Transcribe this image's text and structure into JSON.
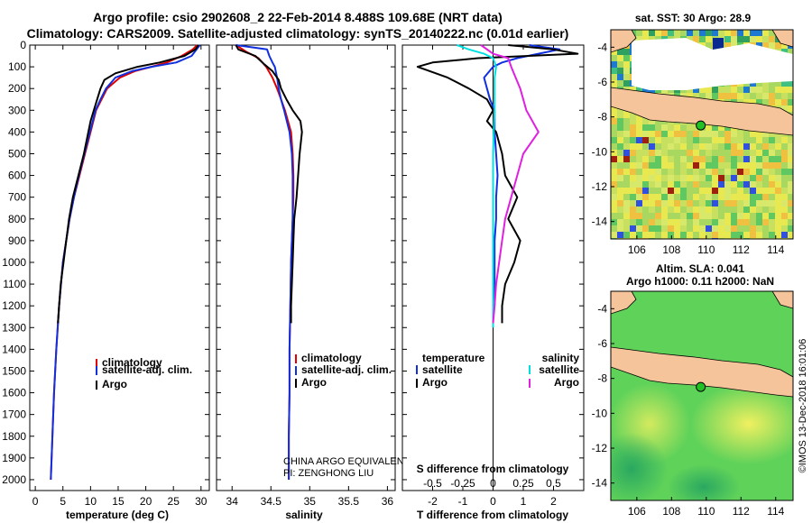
{
  "figure": {
    "title_line1": "Argo profile: csio 2902608_2 22-Feb-2014 8.488S 109.68E (NRT data)",
    "title_line2": "Climatology: CARS2009. Satellite-adjusted climatology: synTS_20140222.nc (0.01d earlier)",
    "credit": "©IMOS 13-Dec-2018 16:01:06",
    "pi_line1": "CHINA ARGO EQUIVALENT",
    "pi_line2": "PI: ZENGHONG LIU"
  },
  "colors": {
    "climatology": "#e00000",
    "satellite": "#1030e0",
    "argo": "#000000",
    "salinity_sat": "#00e0e0",
    "salinity_argo": "#e020e0",
    "land": "#f5c49a",
    "marker": "#22c022"
  },
  "chart_data": [
    {
      "type": "line",
      "id": "temperature-profile",
      "xlabel": "temperature (deg C)",
      "ylabel": "",
      "xlim": [
        -1,
        31.5
      ],
      "ylim": [
        2050,
        0
      ],
      "xticks": [
        "0",
        "5",
        "10",
        "15",
        "20",
        "25",
        "30"
      ],
      "yticks": [
        "0",
        "100",
        "200",
        "300",
        "400",
        "500",
        "600",
        "700",
        "800",
        "900",
        "1000",
        "1100",
        "1200",
        "1300",
        "1400",
        "1500",
        "1600",
        "1700",
        "1800",
        "1900",
        "2000"
      ],
      "legend": [
        "climatology",
        "satellite-adj. clim.",
        "Argo"
      ],
      "series": [
        {
          "name": "climatology",
          "depth": [
            0,
            20,
            50,
            80,
            100,
            120,
            150,
            200,
            250,
            300,
            400,
            500,
            600,
            700,
            800,
            900,
            1000,
            1200,
            1400,
            1600,
            1800,
            2000
          ],
          "values": [
            29.3,
            28.5,
            26.5,
            23.8,
            21,
            18,
            15.3,
            13,
            12,
            11,
            10,
            9,
            8,
            7,
            6.2,
            5.6,
            5,
            4.3,
            3.8,
            3.4,
            3.1,
            2.8
          ]
        },
        {
          "name": "satellite-adj. clim.",
          "depth": [
            0,
            20,
            50,
            80,
            100,
            120,
            150,
            200,
            250,
            300,
            400,
            500,
            600,
            700,
            800,
            900,
            1000,
            1200,
            1400,
            1600,
            1800,
            2000
          ],
          "values": [
            29.8,
            29.2,
            28.3,
            25.5,
            21,
            17.5,
            14.5,
            12.8,
            11.8,
            10.9,
            9.9,
            8.9,
            7.9,
            7,
            6.2,
            5.6,
            5,
            4.3,
            3.8,
            3.4,
            3.1,
            2.8
          ]
        },
        {
          "name": "Argo",
          "depth": [
            0,
            20,
            50,
            80,
            100,
            130,
            160,
            200,
            250,
            300,
            350,
            400,
            500,
            600,
            700,
            800,
            900,
            1000,
            1100,
            1200,
            1280
          ],
          "values": [
            29.5,
            29,
            27,
            22.5,
            18.5,
            14.5,
            12.5,
            11.8,
            11.2,
            10.6,
            10,
            9.6,
            8.8,
            7.8,
            6.8,
            6.1,
            5.6,
            5.1,
            4.6,
            4.3,
            4.1
          ]
        }
      ]
    },
    {
      "type": "line",
      "id": "salinity-profile",
      "xlabel": "salinity",
      "xlim": [
        33.8,
        36.1
      ],
      "ylim": [
        2050,
        0
      ],
      "xticks": [
        "34",
        "34.5",
        "35",
        "35.5",
        "36"
      ],
      "legend": [
        "climatology",
        "satellite-adj. clim.",
        "Argo"
      ],
      "series": [
        {
          "name": "climatology",
          "depth": [
            0,
            30,
            60,
            100,
            150,
            200,
            250,
            300,
            400,
            500,
            600,
            700,
            800,
            900,
            1000,
            1200,
            1400,
            1600,
            1800,
            2000
          ],
          "values": [
            34.05,
            34.18,
            34.34,
            34.44,
            34.52,
            34.58,
            34.63,
            34.68,
            34.76,
            34.78,
            34.79,
            34.79,
            34.78,
            34.77,
            34.76,
            34.75,
            34.74,
            34.74,
            34.73,
            34.73
          ]
        },
        {
          "name": "satellite-adj. clim.",
          "depth": [
            0,
            20,
            50,
            80,
            100,
            150,
            200,
            250,
            300,
            400,
            500,
            600,
            700,
            800,
            900,
            1000,
            1200,
            1400,
            1600,
            1800,
            2000
          ],
          "values": [
            34.05,
            34.45,
            34.48,
            34.52,
            34.55,
            34.58,
            34.6,
            34.63,
            34.67,
            34.74,
            34.77,
            34.78,
            34.78,
            34.78,
            34.77,
            34.76,
            34.75,
            34.74,
            34.74,
            34.73,
            34.73
          ]
        },
        {
          "name": "Argo",
          "depth": [
            0,
            20,
            50,
            90,
            120,
            160,
            200,
            250,
            300,
            350,
            400,
            500,
            600,
            700,
            800,
            900,
            1000,
            1100,
            1200,
            1280
          ],
          "values": [
            34.05,
            34.08,
            34.3,
            34.42,
            34.52,
            34.6,
            34.63,
            34.7,
            34.78,
            34.88,
            34.9,
            34.87,
            34.85,
            34.83,
            34.8,
            34.79,
            34.78,
            34.77,
            34.76,
            34.76
          ]
        }
      ]
    },
    {
      "type": "line",
      "id": "difference-profile",
      "xlabel": "T difference from climatology",
      "x2label": "S difference from climatology",
      "xlim": [
        -3,
        3
      ],
      "ylim": [
        2050,
        0
      ],
      "xticks": [
        "-2",
        "-1",
        "0",
        "1",
        "2"
      ],
      "x2ticks": [
        "-0.5",
        "-0.25",
        "0",
        "0.25",
        "0.5"
      ],
      "legend_left_title": "temperature",
      "legend_right_title": "salinity",
      "legend_left": [
        "satellite",
        "Argo"
      ],
      "legend_right": [
        "satellite",
        "Argo"
      ],
      "series": [
        {
          "name": "temperature satellite",
          "depth": [
            0,
            20,
            40,
            60,
            80,
            100,
            150,
            200,
            250,
            300,
            400,
            500,
            600,
            700,
            800,
            900,
            1000,
            1200
          ],
          "values": [
            1.2,
            2.2,
            1.5,
            0.8,
            0.3,
            0,
            -0.3,
            -0.2,
            -0.1,
            0.05,
            0.05,
            0.1,
            0.15,
            0.1,
            0.1,
            0.05,
            0.05,
            0.05
          ]
        },
        {
          "name": "temperature Argo",
          "depth": [
            0,
            20,
            40,
            60,
            80,
            100,
            150,
            200,
            250,
            300,
            350,
            400,
            500,
            600,
            700,
            800,
            900,
            1000,
            1100,
            1200,
            1280
          ],
          "values": [
            0.5,
            2,
            2.8,
            -0.5,
            -2,
            -2.5,
            -1.5,
            -0.8,
            -0.2,
            0,
            -0.2,
            0.1,
            0.3,
            0.4,
            0.8,
            0.5,
            0.9,
            0.7,
            0.4,
            0.3,
            0.3
          ]
        },
        {
          "name": "salinity satellite",
          "depth": [
            0,
            20,
            40,
            60,
            100,
            150,
            200,
            300,
            400,
            500,
            600,
            800,
            1000,
            1200,
            1300
          ],
          "values": [
            -1.2,
            -0.8,
            -0.3,
            0,
            0.1,
            0.05,
            0.05,
            0.05,
            0.02,
            0,
            0,
            0,
            0,
            0,
            0
          ]
        },
        {
          "name": "salinity Argo",
          "depth": [
            0,
            40,
            60,
            100,
            200,
            300,
            400,
            500,
            600,
            700,
            800,
            900,
            1000,
            1100,
            1200,
            1280
          ],
          "values": [
            -0.4,
            0,
            0.5,
            0.6,
            0.9,
            1.1,
            1.5,
            1,
            0.8,
            0.6,
            0.4,
            0.3,
            0.2,
            0.1,
            0.05,
            0
          ]
        }
      ]
    }
  ],
  "maps": [
    {
      "id": "sst-map",
      "title": "sat. SST: 30 Argo: 28.9",
      "xticks": [
        "106",
        "108",
        "110",
        "112",
        "114"
      ],
      "yticks": [
        "-4",
        "-6",
        "-8",
        "-10",
        "-12",
        "-14"
      ],
      "lon_range": [
        104.5,
        115
      ],
      "lat_range": [
        -15,
        -3
      ],
      "argo_position": [
        109.68,
        -8.488
      ]
    },
    {
      "id": "sla-map",
      "title_line1": "Altim. SLA: 0.041",
      "title_line2": "Argo h1000: 0.11 h2000: NaN",
      "xticks": [
        "106",
        "108",
        "110",
        "112",
        "114"
      ],
      "yticks": [
        "-4",
        "-6",
        "-8",
        "-10",
        "-12",
        "-14"
      ],
      "lon_range": [
        104.5,
        115
      ],
      "lat_range": [
        -15,
        -3
      ],
      "argo_position": [
        109.68,
        -8.488
      ]
    }
  ]
}
